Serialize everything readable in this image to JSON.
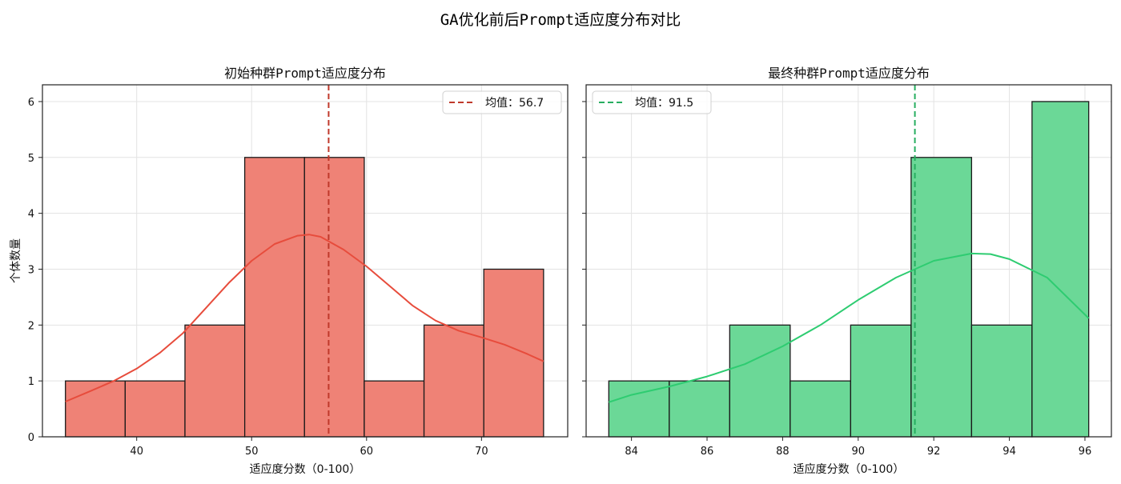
{
  "figure": {
    "title": "GA优化前后Prompt适应度分布对比",
    "shared_ylabel": "个体数量"
  },
  "chart_data": [
    {
      "type": "bar",
      "subtype": "histogram_with_kde",
      "title": "初始种群Prompt适应度分布",
      "xlabel": "适应度分数（0-100）",
      "ylabel": "个体数量",
      "color": "#e74c3c",
      "bar_fill": "#ef8276",
      "bin_edges": [
        33.8,
        39.0,
        44.2,
        49.4,
        54.6,
        59.8,
        65.0,
        70.2,
        75.4
      ],
      "values": [
        1,
        1,
        2,
        5,
        5,
        1,
        2,
        3
      ],
      "xlim": [
        31.8,
        77.5
      ],
      "ylim": [
        0,
        6.3
      ],
      "xticks": [
        40,
        50,
        60,
        70
      ],
      "yticks": [
        0,
        1,
        2,
        3,
        4,
        5,
        6
      ],
      "kde": [
        [
          33.8,
          0.63
        ],
        [
          36,
          0.82
        ],
        [
          38,
          1.0
        ],
        [
          40,
          1.22
        ],
        [
          42,
          1.5
        ],
        [
          44,
          1.85
        ],
        [
          46,
          2.3
        ],
        [
          48,
          2.75
        ],
        [
          50,
          3.15
        ],
        [
          52,
          3.45
        ],
        [
          54,
          3.6
        ],
        [
          55,
          3.62
        ],
        [
          56,
          3.58
        ],
        [
          58,
          3.35
        ],
        [
          60,
          3.05
        ],
        [
          62,
          2.7
        ],
        [
          64,
          2.35
        ],
        [
          66,
          2.08
        ],
        [
          68,
          1.9
        ],
        [
          70,
          1.78
        ],
        [
          72,
          1.65
        ],
        [
          74,
          1.48
        ],
        [
          75.4,
          1.35
        ]
      ],
      "mean": 56.7,
      "legend": {
        "label": "均值：56.7",
        "position": "upper right"
      },
      "grid": true
    },
    {
      "type": "bar",
      "subtype": "histogram_with_kde",
      "title": "最终种群Prompt适应度分布",
      "xlabel": "适应度分数（0-100）",
      "ylabel": "",
      "color": "#2ecc71",
      "bar_fill": "#6bd897",
      "bin_edges": [
        83.4,
        85.0,
        86.6,
        88.2,
        89.8,
        91.4,
        93.0,
        94.6,
        96.1
      ],
      "values": [
        1,
        1,
        2,
        1,
        2,
        5,
        2,
        6
      ],
      "xlim": [
        82.8,
        96.7
      ],
      "ylim": [
        0,
        6.3
      ],
      "xticks": [
        84,
        86,
        88,
        90,
        92,
        94,
        96
      ],
      "yticks": [
        0,
        1,
        2,
        3,
        4,
        5,
        6
      ],
      "kde": [
        [
          83.4,
          0.62
        ],
        [
          84,
          0.75
        ],
        [
          85,
          0.9
        ],
        [
          86,
          1.08
        ],
        [
          87,
          1.3
        ],
        [
          88,
          1.62
        ],
        [
          89,
          2.0
        ],
        [
          90,
          2.45
        ],
        [
          91,
          2.85
        ],
        [
          91.5,
          3.0
        ],
        [
          92,
          3.15
        ],
        [
          93,
          3.28
        ],
        [
          93.5,
          3.27
        ],
        [
          94,
          3.18
        ],
        [
          95,
          2.85
        ],
        [
          96.1,
          2.12
        ]
      ],
      "mean": 91.5,
      "legend": {
        "label": "均值：91.5",
        "position": "upper left"
      },
      "grid": true
    }
  ]
}
